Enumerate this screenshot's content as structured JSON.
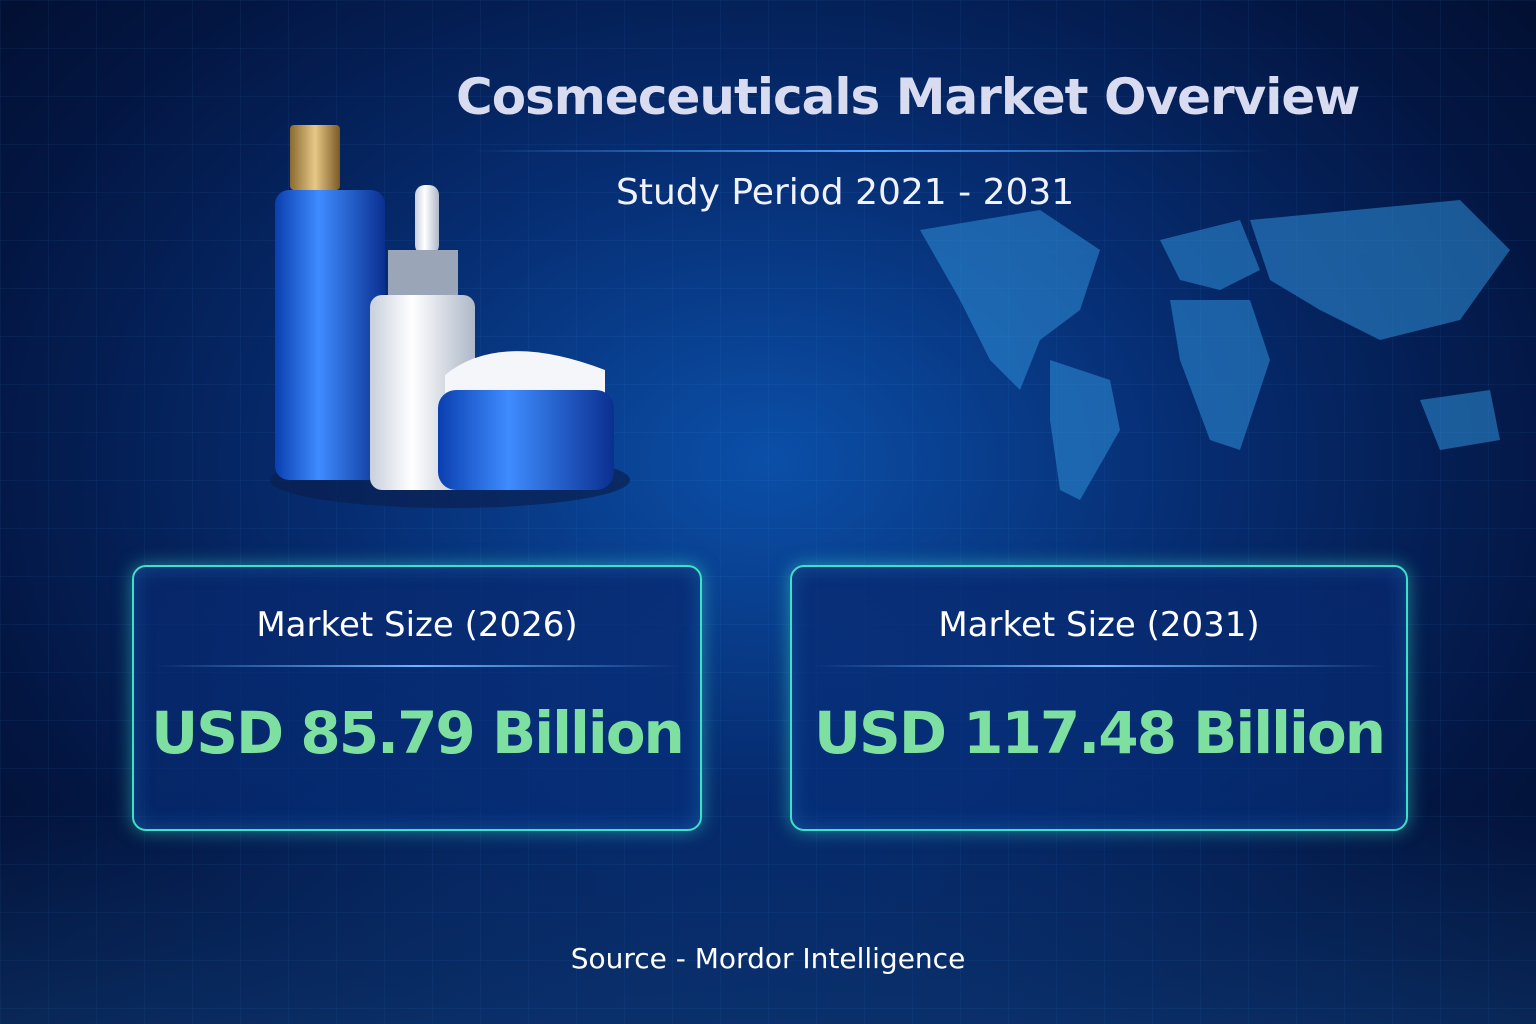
{
  "title": "Cosmeceuticals Market Overview",
  "subtitle": "Study Period 2021 - 2031",
  "cards": [
    {
      "label": "Market Size (2026)",
      "value": "USD 85.79 Billion"
    },
    {
      "label": "Market Size (2031)",
      "value": "USD 117.48 Billion"
    }
  ],
  "source": "Source  -  Mordor Intelligence",
  "colors": {
    "value_green": "#7ee0a0",
    "card_border": "#3fe0c8",
    "background": "#062c70"
  }
}
